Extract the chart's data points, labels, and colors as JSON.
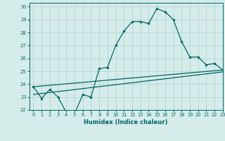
{
  "title": "",
  "xlabel": "Humidex (Indice chaleur)",
  "ylabel": "",
  "xlim": [
    -0.5,
    23
  ],
  "ylim": [
    22,
    30.3
  ],
  "yticks": [
    22,
    23,
    24,
    25,
    26,
    27,
    28,
    29,
    30
  ],
  "xticks": [
    0,
    1,
    2,
    3,
    4,
    5,
    6,
    7,
    8,
    9,
    10,
    11,
    12,
    13,
    14,
    15,
    16,
    17,
    18,
    19,
    20,
    21,
    22,
    23
  ],
  "bg_color": "#d5ecea",
  "grid_color": "#b8d8d6",
  "line_color": "#006666",
  "main_x": [
    0,
    1,
    2,
    3,
    4,
    5,
    6,
    7,
    8,
    9,
    10,
    11,
    12,
    13,
    14,
    15,
    16,
    17,
    18,
    19,
    20,
    21,
    22,
    23
  ],
  "main_y": [
    23.8,
    22.9,
    23.6,
    23.0,
    21.8,
    21.7,
    23.2,
    23.0,
    25.2,
    25.3,
    27.0,
    28.1,
    28.85,
    28.85,
    28.7,
    29.85,
    29.6,
    29.0,
    27.3,
    26.1,
    26.1,
    25.5,
    25.6,
    25.1
  ],
  "line2_x": [
    0,
    23
  ],
  "line2_y": [
    23.8,
    25.1
  ],
  "line3_x": [
    0,
    23
  ],
  "line3_y": [
    23.2,
    24.95
  ]
}
